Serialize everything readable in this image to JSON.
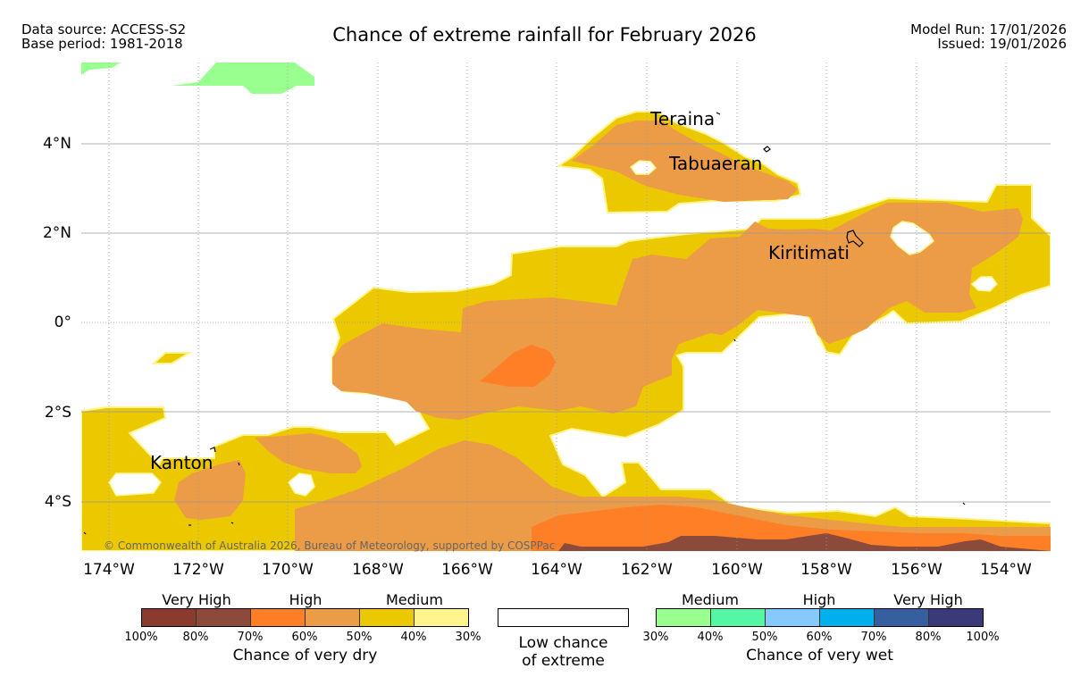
{
  "header": {
    "data_source": "Data source: ACCESS-S2",
    "base_period": "Base period: 1981-2018",
    "title": "Chance of extreme rainfall for February 2026",
    "model_run": "Model Run: 17/01/2026",
    "issued": "Issued: 19/01/2026"
  },
  "map": {
    "lat_labels": [
      "4°N",
      "2°N",
      "0°",
      "2°S",
      "4°S"
    ],
    "lon_labels": [
      "174°W",
      "172°W",
      "170°W",
      "168°W",
      "166°W",
      "164°W",
      "162°W",
      "160°W",
      "158°W",
      "156°W",
      "154°W"
    ],
    "places": [
      "Teraina",
      "Tabuaeran",
      "Kiritimati",
      "Kanton"
    ],
    "copyright": "© Commonwealth of Australia 2026, Bureau of Meteorology, supported by COSPPac"
  },
  "legend": {
    "dry": {
      "category_labels": [
        "Very High",
        "High",
        "Medium"
      ],
      "ticks": [
        "100%",
        "80%",
        "70%",
        "60%",
        "50%",
        "40%",
        "30%"
      ],
      "colors": [
        "#8b3a2e",
        "#8b4a3a",
        "#ff7f27",
        "#ec9b47",
        "#ecc800",
        "#fff58c"
      ],
      "title": "Chance of very dry"
    },
    "low": {
      "line1": "Low chance",
      "line2": "of extreme",
      "color": "#ffffff"
    },
    "wet": {
      "category_labels": [
        "Medium",
        "High",
        "Very High"
      ],
      "ticks": [
        "30%",
        "40%",
        "50%",
        "60%",
        "70%",
        "80%",
        "100%"
      ],
      "colors": [
        "#99ff8f",
        "#55f7a4",
        "#86cafd",
        "#00b0ec",
        "#355f9f",
        "#3a3a7a"
      ],
      "title": "Chance of very wet"
    }
  }
}
